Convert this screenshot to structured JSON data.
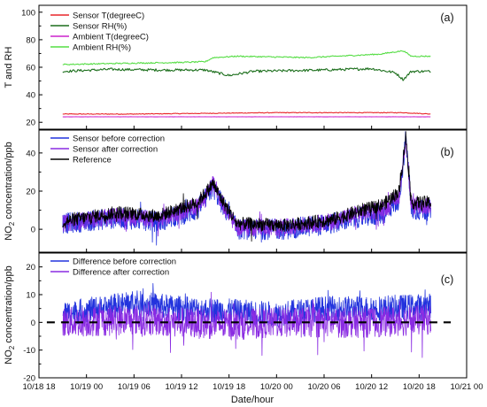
{
  "chart_data": [
    {
      "panel_label": "(a)",
      "type": "line",
      "ylabel": "T and RH",
      "ylim": [
        15,
        105
      ],
      "yticks": [
        20,
        40,
        60,
        80,
        100
      ],
      "legend_position": "top-left",
      "series": [
        {
          "name": "Sensor T(degreeC)",
          "color": "#e8262a",
          "x": [
            "10/18 21:00",
            "10/19 06:00",
            "10/19 15:00",
            "10/20 00:00",
            "10/20 09:00",
            "10/20 16:00",
            "10/20 19:30"
          ],
          "y": [
            26,
            26,
            26.5,
            27,
            27,
            27,
            26
          ]
        },
        {
          "name": "Sensor RH(%)",
          "color": "#1b6e1b",
          "x": [
            "10/18 21:00",
            "10/19 03:00",
            "10/19 09:00",
            "10/19 15:00",
            "10/19 18:00",
            "10/19 21:00",
            "10/20 06:00",
            "10/20 12:00",
            "10/20 15:00",
            "10/20 16:00",
            "10/20 17:00",
            "10/20 19:30"
          ],
          "y": [
            57,
            58.5,
            58,
            58,
            54,
            57,
            58,
            59,
            56,
            51,
            57,
            57
          ]
        },
        {
          "name": "Ambient T(degreeC)",
          "color": "#cc22cc",
          "x": [
            "10/18 21:00",
            "10/20 19:30"
          ],
          "y": [
            24,
            24
          ]
        },
        {
          "name": "Ambient RH(%)",
          "color": "#55dd44",
          "x": [
            "10/18 21:00",
            "10/19 06:00",
            "10/19 12:00",
            "10/19 15:00",
            "10/19 16:00",
            "10/19 19:00",
            "10/20 04:00",
            "10/20 13:00",
            "10/20 16:00",
            "10/20 17:00",
            "10/20 19:30"
          ],
          "y": [
            62,
            63,
            63.5,
            64,
            67,
            68,
            67,
            69.5,
            72,
            68,
            68
          ]
        }
      ]
    },
    {
      "panel_label": "(b)",
      "type": "line",
      "ylabel": "NO2 concentration/ppb",
      "ylim": [
        -12,
        52
      ],
      "yticks": [
        0,
        20,
        40
      ],
      "legend_position": "top-left",
      "series": [
        {
          "name": "Sensor before correction",
          "color": "#2233dd",
          "x": [
            "10/18 21:00",
            "10/19 04:00",
            "10/19 09:00",
            "10/19 14:00",
            "10/19 16:00",
            "10/19 17:00",
            "10/19 19:00",
            "10/20 01:00",
            "10/20 07:00",
            "10/20 10:00",
            "10/20 13:30",
            "10/20 15:30",
            "10/20 16:20",
            "10/20 17:00",
            "10/20 19:30"
          ],
          "y": [
            3,
            6,
            4,
            10,
            22,
            14,
            0,
            0,
            3,
            6,
            8,
            16,
            48,
            10,
            10
          ]
        },
        {
          "name": "Sensor after correction",
          "color": "#8a2be2",
          "x": [
            "10/18 21:00",
            "10/19 04:00",
            "10/19 09:00",
            "10/19 14:00",
            "10/19 16:00",
            "10/19 17:00",
            "10/19 19:00",
            "10/20 01:00",
            "10/20 07:00",
            "10/20 10:00",
            "10/20 13:30",
            "10/20 15:30",
            "10/20 16:20",
            "10/20 17:00",
            "10/20 19:30"
          ],
          "y": [
            3,
            7,
            5,
            12,
            24,
            15,
            1,
            1,
            4,
            8,
            10,
            18,
            48,
            12,
            12
          ]
        },
        {
          "name": "Reference",
          "color": "#000000",
          "x": [
            "10/18 21:00",
            "10/19 04:00",
            "10/19 09:00",
            "10/19 14:00",
            "10/19 16:00",
            "10/19 17:00",
            "10/19 19:00",
            "10/20 01:00",
            "10/20 07:00",
            "10/20 10:00",
            "10/20 13:30",
            "10/20 15:30",
            "10/20 16:20",
            "10/20 17:00",
            "10/20 19:30"
          ],
          "y": [
            4,
            9,
            7,
            14,
            24,
            16,
            3,
            2,
            5,
            9,
            13,
            20,
            49,
            14,
            14
          ]
        }
      ]
    },
    {
      "panel_label": "(c)",
      "type": "line",
      "ylabel": "NO2 concentration/ppb",
      "xlabel": "Date/hour",
      "ylim": [
        -20,
        25
      ],
      "yticks": [
        -20,
        -10,
        0,
        10,
        20
      ],
      "legend_position": "top-left",
      "series": [
        {
          "name": "Difference before correction",
          "color": "#2233dd",
          "x": [
            "10/18 21:00",
            "10/19 06:00",
            "10/19 12:00",
            "10/19 18:00",
            "10/20 00:00",
            "10/20 06:00",
            "10/20 12:00",
            "10/20 19:30"
          ],
          "y": [
            3,
            7,
            5,
            4,
            3,
            5,
            5,
            6
          ]
        },
        {
          "name": "Difference after correction",
          "color": "#8a2be2",
          "x": [
            "10/18 21:00",
            "10/19 06:00",
            "10/19 12:00",
            "10/19 18:00",
            "10/20 00:00",
            "10/20 06:00",
            "10/20 12:00",
            "10/20 19:30"
          ],
          "y": [
            0,
            1,
            0,
            -1,
            0,
            0,
            0,
            1
          ]
        },
        {
          "name": "",
          "color": "#000000",
          "style": "dashed",
          "x": [
            "10/18 19:00",
            "10/20 22:00"
          ],
          "y": [
            0,
            0
          ]
        }
      ]
    }
  ],
  "x_axis": {
    "label": "Date/hour",
    "xlim": [
      "10/18 18:00",
      "10/21 00:00"
    ],
    "ticks": [
      "10/18 18",
      "10/19 00",
      "10/19 06",
      "10/19 12",
      "10/19 18",
      "10/20 00",
      "10/20 06",
      "10/20 12",
      "10/20 18",
      "10/21 00"
    ]
  }
}
